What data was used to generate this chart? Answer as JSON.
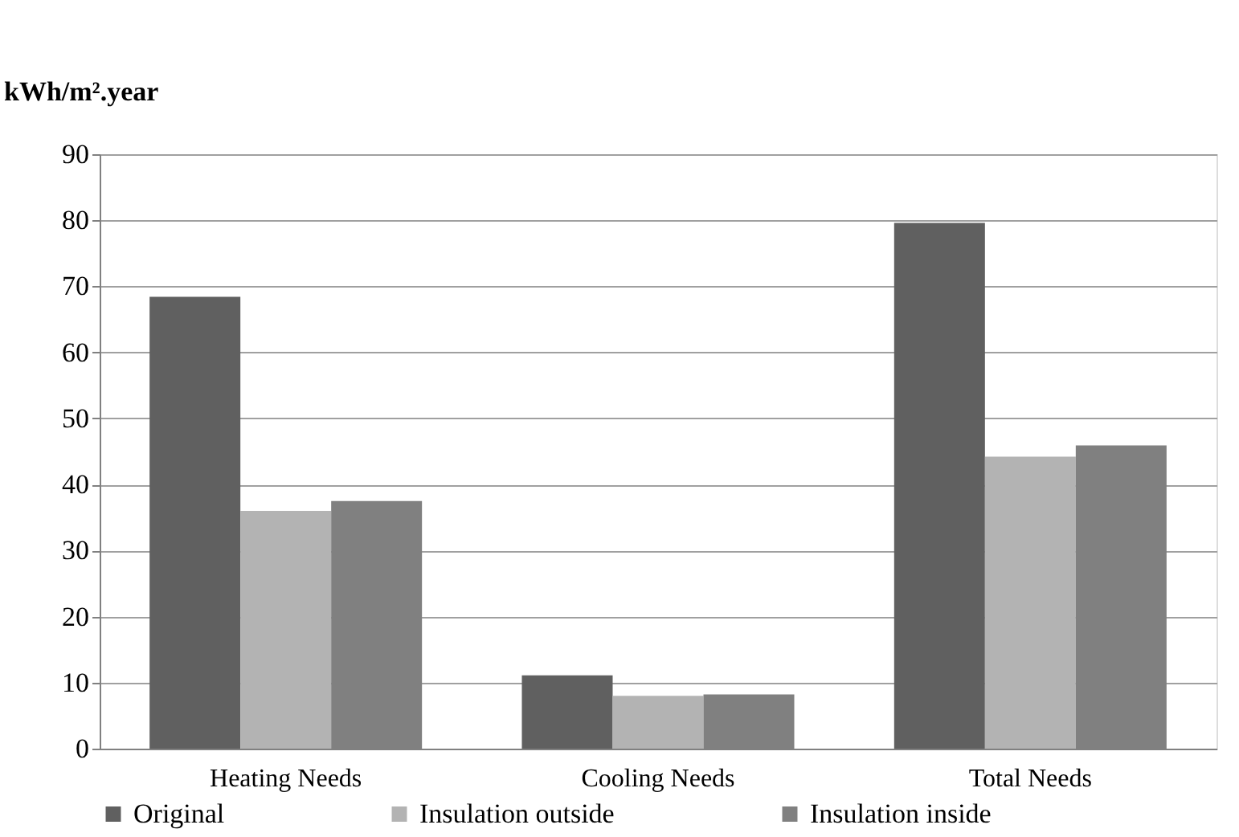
{
  "chart_data": {
    "type": "bar",
    "ylabel": "kWh/m².year",
    "categories": [
      "Heating Needs",
      "Cooling Needs",
      "Total Needs"
    ],
    "series": [
      {
        "name": "Original",
        "color": "#606060",
        "values": [
          68.4,
          11.1,
          79.6
        ]
      },
      {
        "name": "Insulation outside",
        "color": "#b3b3b3",
        "values": [
          36.0,
          8.0,
          44.2
        ]
      },
      {
        "name": "Insulation inside",
        "color": "#808080",
        "values": [
          37.5,
          8.2,
          45.9
        ]
      }
    ],
    "ylim": [
      0,
      90
    ],
    "yticks": [
      0,
      10,
      20,
      30,
      40,
      50,
      60,
      70,
      80,
      90
    ],
    "grid": "y",
    "legend": "bottom"
  }
}
